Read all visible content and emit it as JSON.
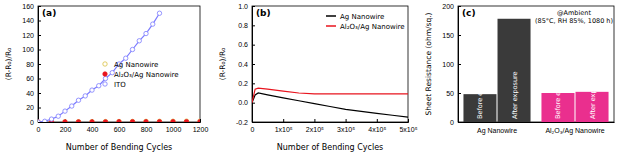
{
  "chart_data": [
    {
      "type": "line",
      "title": "(a)",
      "xlabel": "Number of Bending Cycles",
      "ylabel": "(R-R₀)/R₀",
      "xlim": [
        0,
        1200
      ],
      "xticks": [
        0,
        200,
        400,
        600,
        800,
        1000,
        1200
      ],
      "ylim": [
        0,
        160
      ],
      "yticks": [
        0,
        20,
        40,
        60,
        80,
        100,
        120,
        140,
        160
      ],
      "legend": "center",
      "series": [
        {
          "name": "Ag Nanowire",
          "color": "#d8c040",
          "marker": "open_circle",
          "line_style": "none",
          "x": [
            0,
            100,
            200,
            300,
            400,
            500,
            600,
            700,
            800,
            900,
            1000,
            1100,
            1200
          ],
          "values": [
            0,
            0.2,
            0.3,
            0.4,
            0.5,
            0.6,
            0.7,
            0.8,
            0.9,
            1.0,
            1.1,
            1.2,
            1.3
          ]
        },
        {
          "name": "Al₂O₃/Ag Nanowire",
          "color": "#e8141e",
          "marker": "circle",
          "line_style": "none",
          "x": [
            0,
            100,
            200,
            300,
            400,
            500,
            600,
            700,
            800,
            900,
            1000,
            1100,
            1200
          ],
          "values": [
            0,
            0.1,
            0.1,
            0.2,
            0.2,
            0.2,
            0.3,
            0.3,
            0.3,
            0.3,
            0.4,
            0.4,
            0.4
          ]
        },
        {
          "name": "ITO",
          "color": "#7b7bff",
          "marker": "open_circle",
          "line_style": "solid",
          "x": [
            0,
            50,
            100,
            150,
            200,
            250,
            300,
            350,
            400,
            450,
            500,
            550,
            600,
            650,
            700,
            750,
            800,
            850,
            900
          ],
          "values": [
            0,
            1,
            4,
            8,
            15,
            22,
            30,
            36,
            44,
            50,
            60,
            68,
            80,
            88,
            100,
            112,
            122,
            135,
            150
          ]
        }
      ]
    },
    {
      "type": "line",
      "title": "(b)",
      "xlabel": "Number of Bending Cycles",
      "ylabel": "(R-R₀)/R₀",
      "xlim": [
        0,
        500000
      ],
      "xticks": [
        0,
        {
          "value": 100000,
          "label": "1x10⁵"
        },
        {
          "value": 200000,
          "label": "2x10⁵"
        },
        {
          "value": 300000,
          "label": "3x10⁵"
        },
        {
          "value": 400000,
          "label": "4x10⁵"
        },
        {
          "value": 500000,
          "label": "5x10⁵"
        }
      ],
      "ylim": [
        -0.2,
        1.0
      ],
      "yticks": [
        -0.2,
        {
          "value": 0,
          "label": "0.0"
        },
        0.2,
        0.4,
        0.6,
        0.8,
        {
          "value": 1.0,
          "label": "1.0"
        }
      ],
      "legend": "upper right",
      "series": [
        {
          "name": "Ag Nanowire",
          "color": "#000000",
          "marker": "none",
          "line_style": "solid",
          "x": [
            0,
            10000,
            20000,
            50000,
            100000,
            150000,
            200000,
            250000,
            300000,
            350000,
            400000,
            450000,
            500000
          ],
          "values": [
            0,
            0.08,
            0.1,
            0.08,
            0.05,
            0.02,
            -0.01,
            -0.04,
            -0.07,
            -0.09,
            -0.11,
            -0.13,
            -0.15
          ]
        },
        {
          "name": "Al₂O₃/Ag Nanowire",
          "color": "#e8141e",
          "marker": "none",
          "line_style": "solid",
          "x": [
            0,
            10000,
            20000,
            50000,
            100000,
            150000,
            200000,
            250000,
            300000,
            350000,
            400000,
            450000,
            500000
          ],
          "values": [
            0,
            0.14,
            0.15,
            0.14,
            0.12,
            0.1,
            0.09,
            0.09,
            0.09,
            0.09,
            0.09,
            0.09,
            0.09
          ]
        }
      ]
    },
    {
      "type": "bar",
      "title": "(c)",
      "ylabel": "Sheet Resistance (ohm/sq.)",
      "categories": [
        "Ag Nanowire",
        "Al₂O₃/Ag Nanowire"
      ],
      "ylim": [
        0,
        200
      ],
      "yticks": [
        0,
        50,
        100,
        150,
        200
      ],
      "annotations": [
        "@Ambient",
        "(85°C, RH 85%, 1080 h)"
      ],
      "series": [
        {
          "name": "Before exposure",
          "colors": [
            "#3a3a3a",
            "#ea2f8e"
          ],
          "values": [
            48,
            50
          ]
        },
        {
          "name": "After exposure",
          "colors": [
            "#3a3a3a",
            "#ea2f8e"
          ],
          "values": [
            178,
            52
          ]
        }
      ]
    }
  ]
}
